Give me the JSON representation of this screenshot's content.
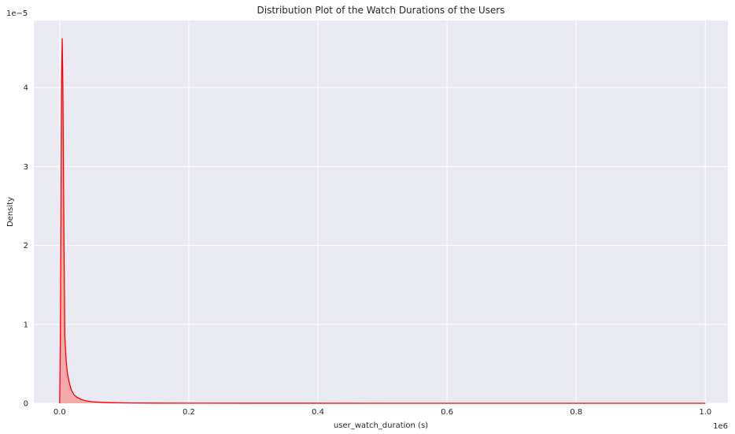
{
  "chart_data": {
    "type": "area",
    "title": "Distribution Plot of the Watch Durations of the Users",
    "xlabel": "user_watch_duration (s)",
    "ylabel": "Density",
    "x_offset_label": "1e6",
    "y_offset_label": "1e−5",
    "xlim": [
      -0.04,
      1.035
    ],
    "ylim": [
      0,
      4.85
    ],
    "x_ticks": [
      0.0,
      0.2,
      0.4,
      0.6,
      0.8,
      1.0
    ],
    "x_tick_labels": [
      "0.0",
      "0.2",
      "0.4",
      "0.6",
      "0.8",
      "1.0"
    ],
    "y_ticks": [
      0,
      1,
      2,
      3,
      4
    ],
    "y_tick_labels": [
      "0",
      "1",
      "2",
      "3",
      "4"
    ],
    "grid": true,
    "background_color": "#eaeaf2",
    "grid_color": "#ffffff",
    "series": [
      {
        "color": "#ff0000",
        "fill_color": "#f4a9ad",
        "x": [
          0.0,
          0.001,
          0.002,
          0.003,
          0.004,
          0.005,
          0.0065,
          0.008,
          0.01,
          0.012,
          0.015,
          0.018,
          0.022,
          0.027,
          0.033,
          0.04,
          0.05,
          0.065,
          0.085,
          0.11,
          0.15,
          0.2,
          0.3,
          0.5,
          0.7,
          1.0
        ],
        "y": [
          0.0,
          0.8,
          2.4,
          4.1,
          4.62,
          4.0,
          2.3,
          0.85,
          0.55,
          0.38,
          0.26,
          0.17,
          0.11,
          0.075,
          0.05,
          0.032,
          0.02,
          0.012,
          0.007,
          0.004,
          0.002,
          0.001,
          0.0005,
          0.0002,
          0.0001,
          0.0
        ]
      }
    ]
  }
}
